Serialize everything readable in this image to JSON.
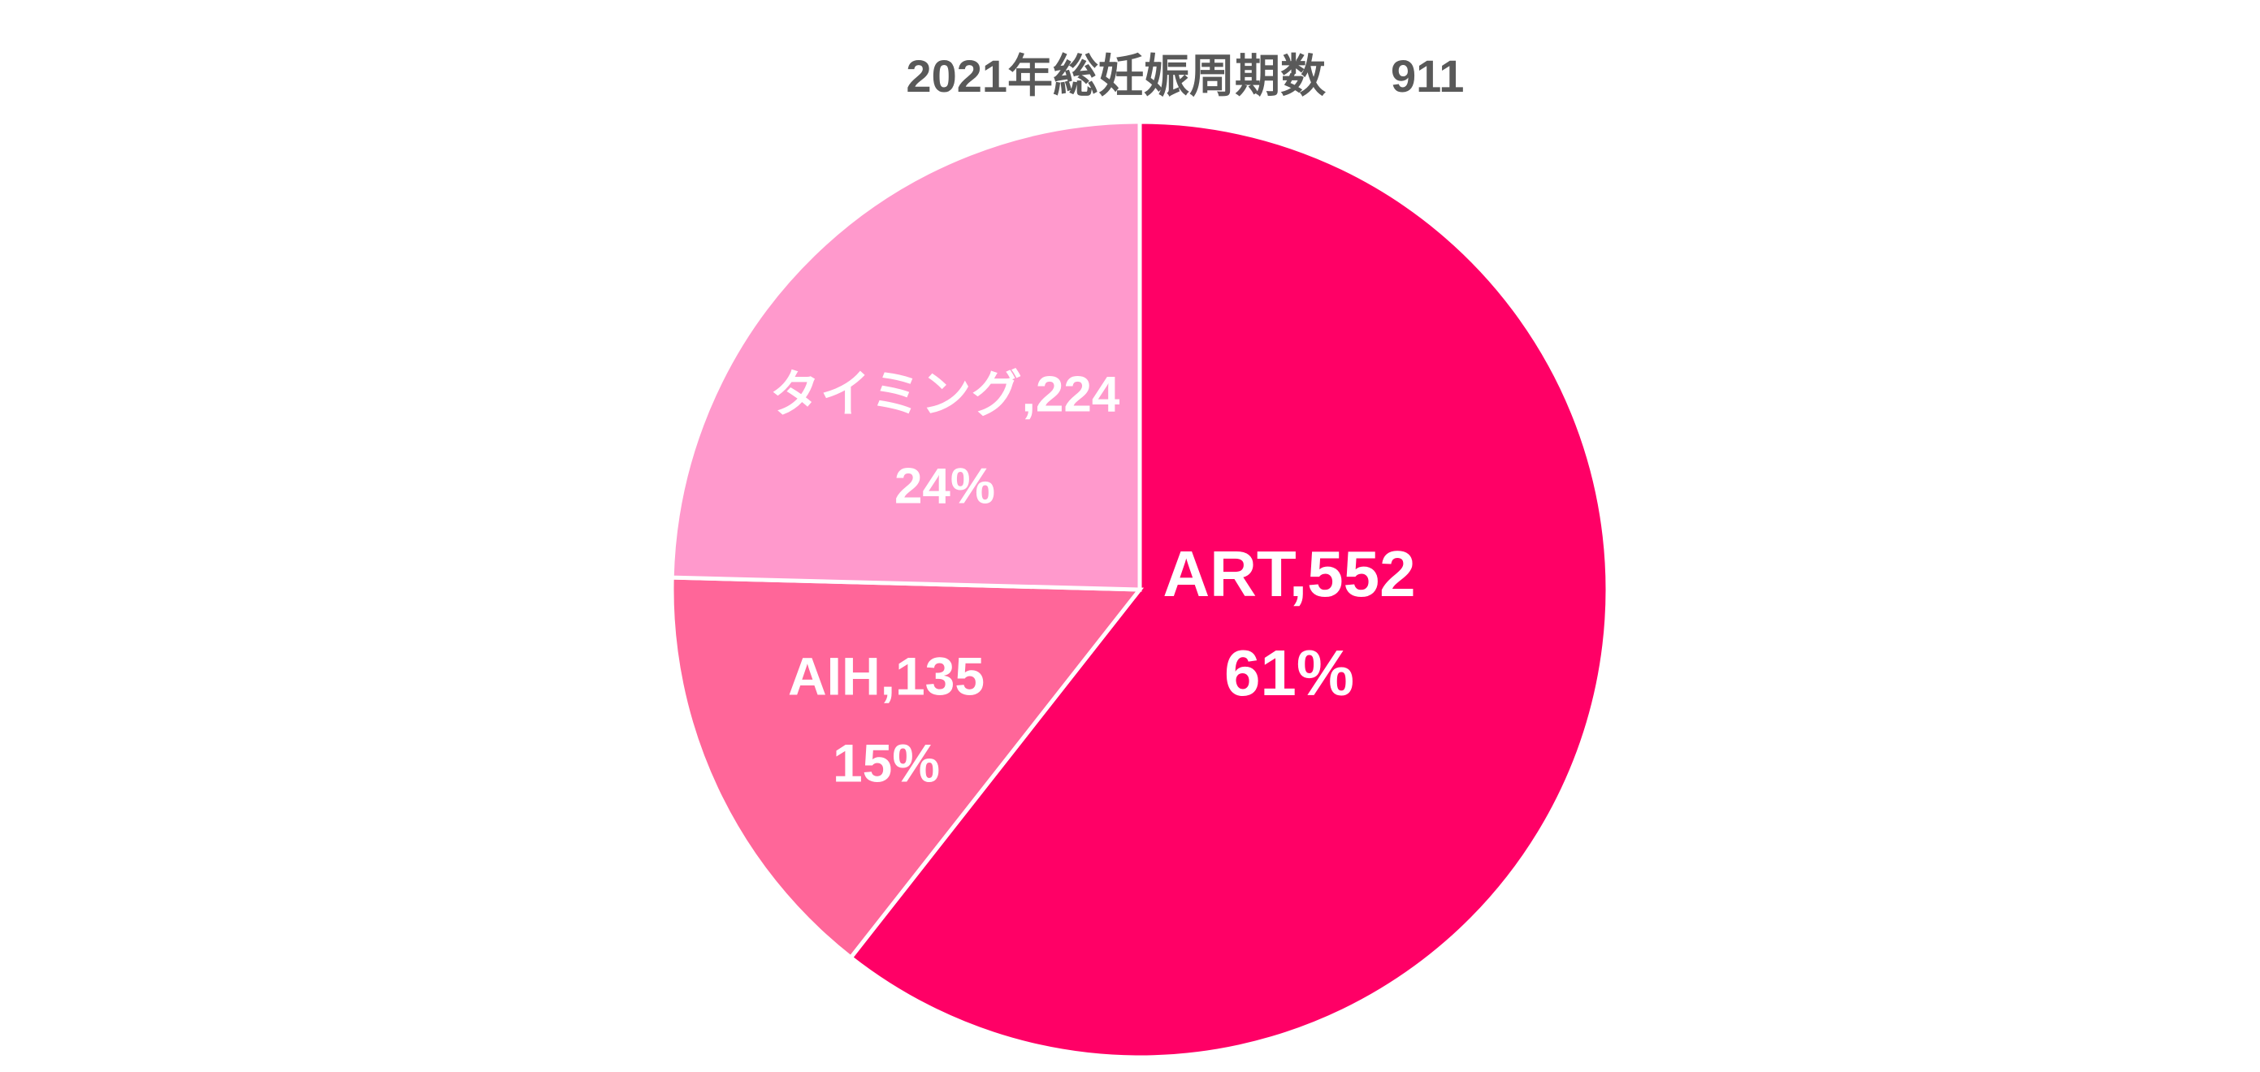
{
  "chart_data": {
    "type": "pie",
    "title": "2021年総妊娠周期数",
    "total": 911,
    "categories": [
      "ART",
      "AIH",
      "タイミング"
    ],
    "values": [
      552,
      135,
      224
    ],
    "value_labels": [
      "ART,552",
      "AIH,135",
      "タイミング,224"
    ],
    "percents": [
      {
        "value": 61,
        "label": "61%"
      },
      {
        "value": 15,
        "label": "15%"
      },
      {
        "value": 24,
        "label": "24%"
      }
    ],
    "colors": [
      "#ff0066",
      "#ff6699",
      "#ff99cc"
    ]
  }
}
